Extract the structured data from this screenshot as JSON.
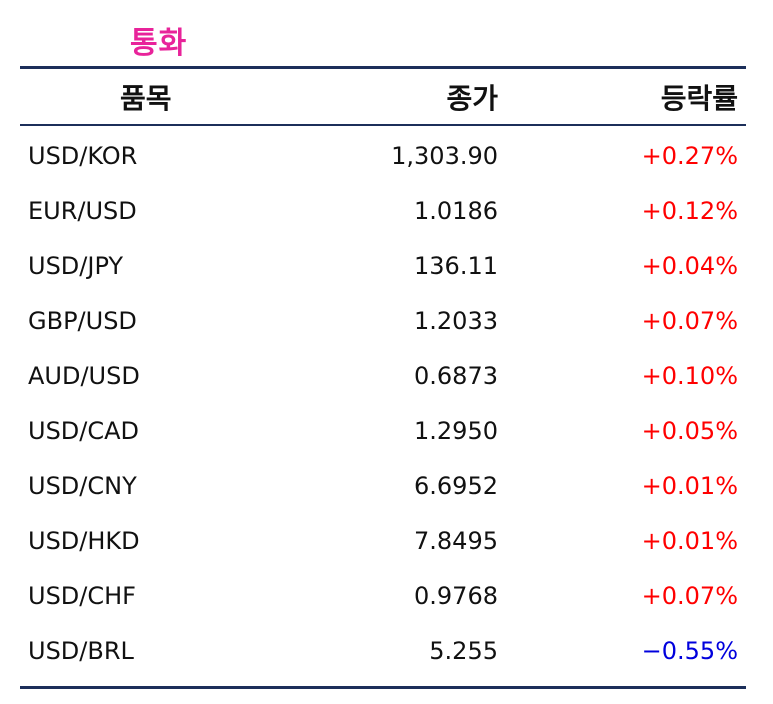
{
  "title": "통화",
  "headers": {
    "item": "품목",
    "close": "종가",
    "change": "등락률"
  },
  "colors": {
    "title": "#e8239a",
    "up": "#ff0000",
    "down": "#0000dd",
    "rule": "#1c2f5a"
  },
  "rows": [
    {
      "pair": "USD/KOR",
      "close": "1,303.90",
      "change": "+0.27%",
      "dir": "up"
    },
    {
      "pair": "EUR/USD",
      "close": "1.0186",
      "change": "+0.12%",
      "dir": "up"
    },
    {
      "pair": "USD/JPY",
      "close": "136.11",
      "change": "+0.04%",
      "dir": "up"
    },
    {
      "pair": "GBP/USD",
      "close": "1.2033",
      "change": "+0.07%",
      "dir": "up"
    },
    {
      "pair": "AUD/USD",
      "close": "0.6873",
      "change": "+0.10%",
      "dir": "up"
    },
    {
      "pair": "USD/CAD",
      "close": "1.2950",
      "change": "+0.05%",
      "dir": "up"
    },
    {
      "pair": "USD/CNY",
      "close": "6.6952",
      "change": "+0.01%",
      "dir": "up"
    },
    {
      "pair": "USD/HKD",
      "close": "7.8495",
      "change": "+0.01%",
      "dir": "up"
    },
    {
      "pair": "USD/CHF",
      "close": "0.9768",
      "change": "+0.07%",
      "dir": "up"
    },
    {
      "pair": "USD/BRL",
      "close": "5.255",
      "change": "−0.55%",
      "dir": "down"
    }
  ]
}
